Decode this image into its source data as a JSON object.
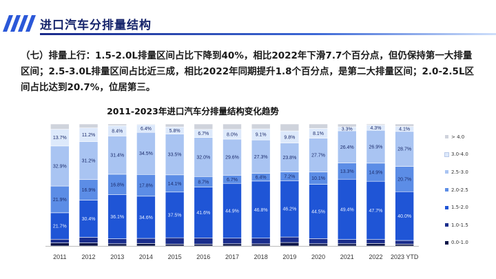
{
  "header": {
    "title": "进口汽车分排量结构",
    "accent": "#1a2a8a"
  },
  "paragraph": "（七）排量上行：1.5-2.0L排量区间占比下降到40%，相比2022年下滑7.7个百分点，但仍保持第一大排量区间；2.5-3.0L排量区间占比近三成，相比2022年同期提升1.8个百分点，是第二大排量区间；2.0-2.5L区间占比达到20.7%，位居第三。",
  "chart_data": {
    "type": "bar",
    "stacked": true,
    "percent": true,
    "title": "2011-2023年进口汽车分排量结构变化趋势",
    "categories": [
      "2011",
      "2012",
      "2013",
      "2014",
      "2015",
      "2016",
      "2017",
      "2018",
      "2019",
      "2020",
      "2021",
      "2022",
      "2023 YTD"
    ],
    "ylim": [
      0,
      100
    ],
    "legend_position": "right",
    "series": [
      {
        "name": "0.0-1.0",
        "color": "#0a1448",
        "values": [
          2.5,
          2.5,
          1.8,
          2.0,
          1.5,
          1.5,
          1.8,
          1.7,
          2.8,
          1.8,
          1.8,
          2.0,
          1.5
        ]
      },
      {
        "name": "1.0-1.5",
        "color": "#1a2d8c",
        "values": [
          3.0,
          4.6,
          4.1,
          4.2,
          5.2,
          5.1,
          4.6,
          4.7,
          4.5,
          4.2,
          3.5,
          3.3,
          3.0
        ]
      },
      {
        "name": "1.5-2.0",
        "color": "#1f55d6",
        "values": [
          21.7,
          30.4,
          36.1,
          34.6,
          37.5,
          41.6,
          44.9,
          46.8,
          46.2,
          44.5,
          49.4,
          47.7,
          40.0
        ]
      },
      {
        "name": "2.0-2.5",
        "color": "#5c8de6",
        "values": [
          21.9,
          16.9,
          16.8,
          17.8,
          14.1,
          8.7,
          6.7,
          6.4,
          7.2,
          10.1,
          13.3,
          14.9,
          20.7
        ]
      },
      {
        "name": "2.5-3.0",
        "color": "#a9c4f2",
        "values": [
          32.9,
          31.2,
          31.4,
          34.5,
          33.5,
          32.0,
          29.6,
          27.3,
          23.8,
          27.7,
          26.4,
          26.9,
          28.7
        ]
      },
      {
        "name": "3.0-4.0",
        "color": "#dde9fb",
        "values": [
          13.7,
          11.2,
          8.4,
          6.4,
          5.8,
          6.7,
          8.0,
          9.1,
          9.8,
          8.1,
          3.3,
          4.3,
          4.1
        ]
      },
      {
        "name": "> 4.0",
        "color": "#cfd3dc",
        "values": [
          4.3,
          3.2,
          1.4,
          0.5,
          2.4,
          4.4,
          4.4,
          4.0,
          5.7,
          3.6,
          2.3,
          0.9,
          2.0
        ]
      }
    ],
    "labeled_series": [
      "1.5-2.0",
      "2.0-2.5",
      "2.5-3.0",
      "3.0-4.0"
    ],
    "labels": [
      [
        "21.7%",
        "30.4%",
        "36.1%",
        "34.6%",
        "37.5%",
        "41.6%",
        "44.9%",
        "46.8%",
        "46.2%",
        "44.5%",
        "49.4%",
        "47.7%",
        "40.0%"
      ],
      [
        "21.9%",
        "16.9%",
        "16.8%",
        "17.8%",
        "14.1%",
        "8.7%",
        "6.7%",
        "6.4%",
        "7.2%",
        "10.1%",
        "13.3%",
        "14.9%",
        "20.7%"
      ],
      [
        "32.9%",
        "31.2%",
        "31.4%",
        "34.5%",
        "33.5%",
        "32.0%",
        "29.6%",
        "27.3%",
        "23.8%",
        "27.7%",
        "26.4%",
        "26.9%",
        "28.7%"
      ],
      [
        "13.7%",
        "11.2%",
        "8.4%",
        "6.4%",
        "5.8%",
        "6.7%",
        "8.0%",
        "9.1%",
        "9.8%",
        "8.1%",
        "3.3%",
        "4.3%",
        "4.1%"
      ]
    ],
    "legend": [
      "> 4.0",
      "3.0-4.0",
      "2.5-3.0",
      "2.0-2.5",
      "1.5-2.0",
      "1.0-1.5",
      "0.0-1.0"
    ]
  }
}
